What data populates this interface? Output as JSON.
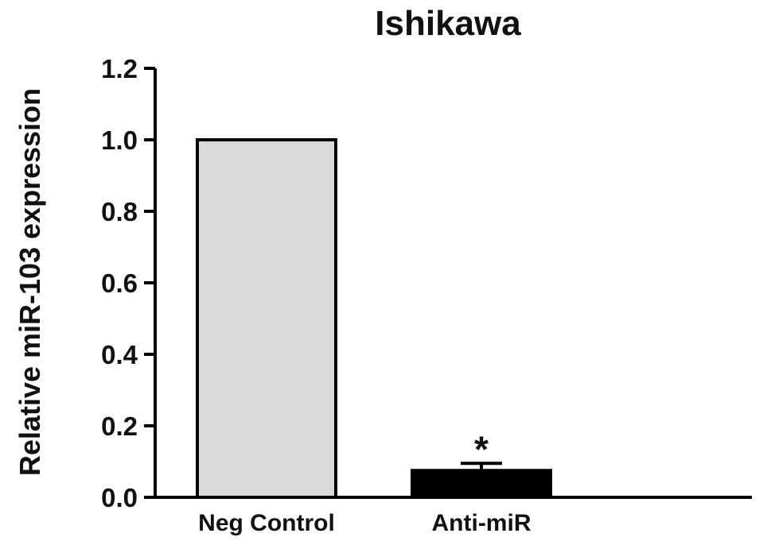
{
  "chart_data": {
    "type": "bar",
    "title": "Ishikawa",
    "xlabel": "",
    "ylabel": "Relative miR-103 expression",
    "ylim": [
      0,
      1.2
    ],
    "yticks": [
      "0.0",
      "0.2",
      "0.4",
      "0.6",
      "0.8",
      "1.0",
      "1.2"
    ],
    "grid": false,
    "legend": "none",
    "categories": [
      "Neg Control",
      "Anti-miR"
    ],
    "values": [
      1.0,
      0.075
    ],
    "errors": [
      0,
      0.02
    ],
    "bar_colors": [
      "#d9d9d9",
      "#000000"
    ],
    "annotations": [
      {
        "category": "Anti-miR",
        "text": "*"
      }
    ]
  }
}
